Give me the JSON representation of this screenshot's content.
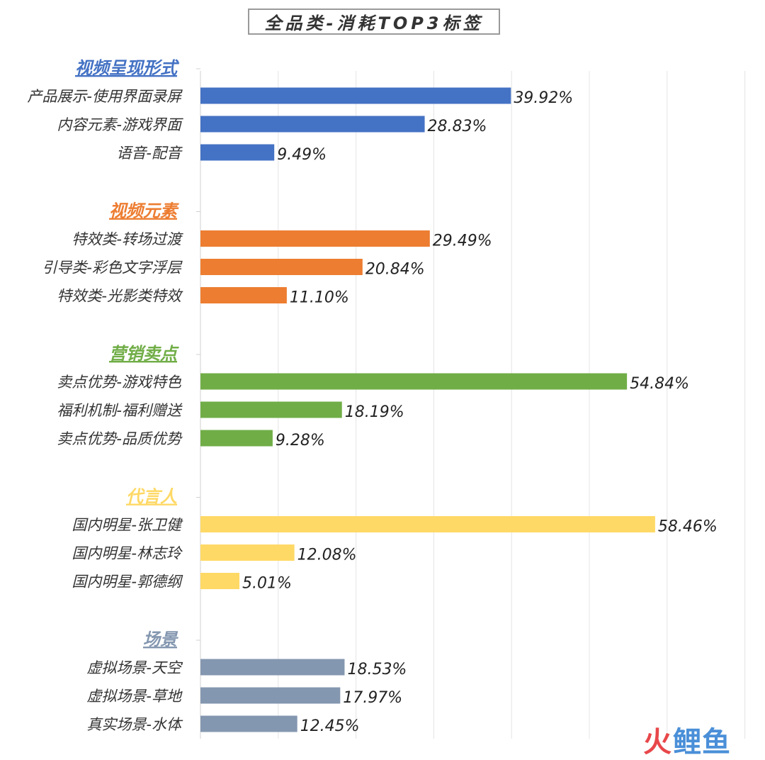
{
  "title": "全品类-消耗TOP3标签",
  "watermark": {
    "char1": "火",
    "rest": "鲤鱼"
  },
  "chart_data": {
    "type": "bar",
    "orientation": "horizontal",
    "grid": true,
    "xlim": [
      0,
      70
    ],
    "value_suffix": "%",
    "groups": [
      {
        "name": "视频呈现形式",
        "color": "#4472c4",
        "categories": [
          "产品展示-使用界面录屏",
          "内容元素-游戏界面",
          "语音-配音"
        ],
        "values": [
          39.92,
          28.83,
          9.49
        ],
        "labels": [
          "39.92%",
          "28.83%",
          "9.49%"
        ]
      },
      {
        "name": "视频元素",
        "color": "#ed7d31",
        "categories": [
          "特效类-转场过渡",
          "引导类-彩色文字浮层",
          "特效类-光影类特效"
        ],
        "values": [
          29.49,
          20.84,
          11.1
        ],
        "labels": [
          "29.49%",
          "20.84%",
          "11.10%"
        ]
      },
      {
        "name": "营销卖点",
        "color": "#70ad47",
        "categories": [
          "卖点优势-游戏特色",
          "福利机制-福利赠送",
          "卖点优势-品质优势"
        ],
        "values": [
          54.84,
          18.19,
          9.28
        ],
        "labels": [
          "54.84%",
          "18.19%",
          "9.28%"
        ]
      },
      {
        "name": "代言人",
        "color": "#ffd966",
        "categories": [
          "国内明星-张卫健",
          "国内明星-林志玲",
          "国内明星-郭德纲"
        ],
        "values": [
          58.46,
          12.08,
          5.01
        ],
        "labels": [
          "58.46%",
          "12.08%",
          "5.01%"
        ]
      },
      {
        "name": "场景",
        "color": "#8497b0",
        "categories": [
          "虚拟场景-天空",
          "虚拟场景-草地",
          "真实场景-水体"
        ],
        "values": [
          18.53,
          17.97,
          12.45
        ],
        "labels": [
          "18.53%",
          "17.97%",
          "12.45%"
        ]
      }
    ]
  }
}
